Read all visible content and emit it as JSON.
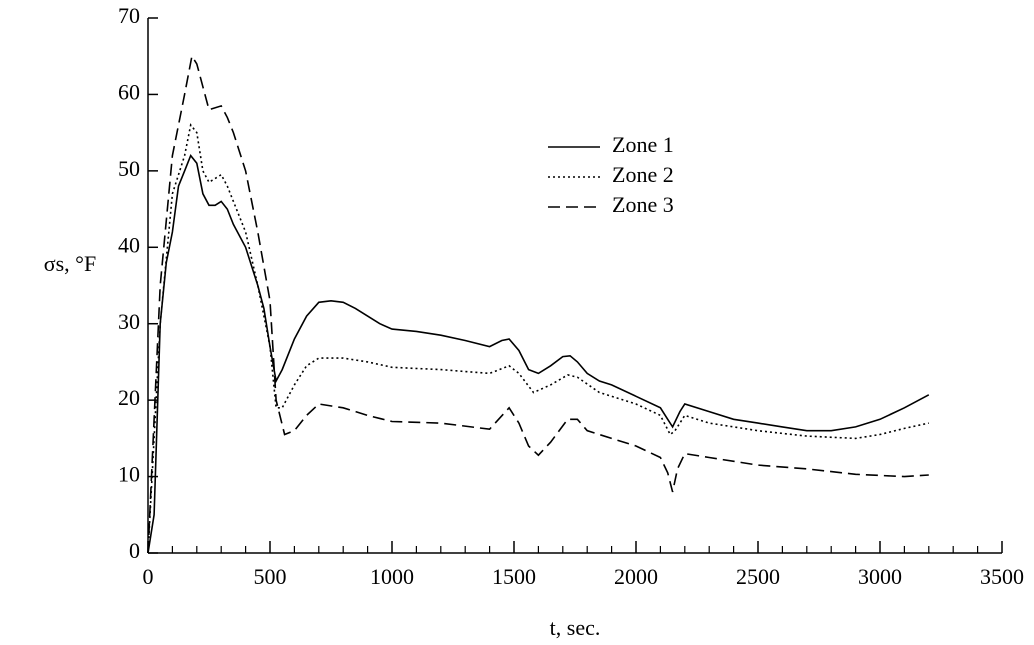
{
  "chart_data": {
    "type": "line",
    "x_label": "t, sec.",
    "y_label": "σs, °F",
    "xlim": [
      0,
      3500
    ],
    "xticks": [
      0,
      500,
      1000,
      1500,
      2000,
      2500,
      3000,
      3500
    ],
    "xminorticks": [
      100,
      200,
      300,
      400,
      600,
      700,
      800,
      900,
      1100,
      1200,
      1300,
      1400,
      1600,
      1700,
      1800,
      1900,
      2100,
      2200,
      2300,
      2400,
      2600,
      2700,
      2800,
      2900,
      3100,
      3200,
      3300,
      3400
    ],
    "ylim": [
      0,
      70
    ],
    "yticks": [
      0,
      10,
      20,
      30,
      40,
      50,
      60,
      70
    ],
    "grid": false,
    "legend": "upper-center",
    "series": [
      {
        "name": "Zone 1",
        "color": "#000000",
        "dash": "solid",
        "x": [
          0,
          25,
          50,
          75,
          100,
          125,
          150,
          175,
          200,
          225,
          250,
          275,
          300,
          325,
          350,
          400,
          450,
          475,
          500,
          525,
          550,
          600,
          650,
          700,
          750,
          800,
          850,
          900,
          950,
          1000,
          1100,
          1200,
          1300,
          1400,
          1450,
          1480,
          1520,
          1560,
          1600,
          1650,
          1700,
          1730,
          1760,
          1800,
          1850,
          1900,
          2000,
          2100,
          2130,
          2150,
          2180,
          2200,
          2300,
          2400,
          2500,
          2600,
          2700,
          2800,
          2900,
          3000,
          3100,
          3200
        ],
        "values": [
          0,
          5,
          30,
          38,
          42,
          48,
          50,
          52,
          51,
          47,
          45.5,
          45.5,
          46,
          45,
          43,
          40,
          35,
          32,
          27,
          22.5,
          24,
          28,
          31,
          32.8,
          33,
          32.8,
          32,
          31,
          30,
          29.3,
          29,
          28.5,
          27.8,
          27,
          27.8,
          28,
          26.5,
          24,
          23.5,
          24.5,
          25.7,
          25.8,
          25,
          23.5,
          22.5,
          22,
          20.5,
          19,
          17.5,
          16.5,
          18.5,
          19.5,
          18.5,
          17.5,
          17,
          16.5,
          16,
          16,
          16.5,
          17.5,
          19,
          20.7
        ]
      },
      {
        "name": "Zone 2",
        "color": "#000000",
        "dash": "dotted",
        "x": [
          0,
          50,
          100,
          150,
          175,
          200,
          225,
          250,
          300,
          325,
          350,
          400,
          450,
          500,
          525,
          550,
          600,
          650,
          700,
          800,
          900,
          1000,
          1200,
          1400,
          1480,
          1520,
          1580,
          1650,
          1720,
          1760,
          1850,
          2000,
          2100,
          2140,
          2160,
          2200,
          2300,
          2500,
          2700,
          2900,
          3000,
          3100,
          3200
        ],
        "values": [
          0,
          30,
          47,
          52,
          56,
          55,
          50,
          48.5,
          49.5,
          48,
          46,
          42,
          35,
          27,
          19,
          19,
          22,
          24.5,
          25.5,
          25.5,
          25,
          24.3,
          24,
          23.5,
          24.5,
          23.5,
          21,
          22,
          23.3,
          23,
          21,
          19.5,
          18,
          15.5,
          16,
          18,
          17,
          16,
          15.3,
          15,
          15.5,
          16.3,
          17
        ]
      },
      {
        "name": "Zone 3",
        "color": "#000000",
        "dash": "dashed",
        "x": [
          0,
          50,
          100,
          150,
          180,
          200,
          225,
          250,
          300,
          325,
          350,
          400,
          450,
          500,
          525,
          560,
          600,
          650,
          700,
          800,
          900,
          1000,
          1200,
          1400,
          1480,
          1520,
          1560,
          1600,
          1650,
          1720,
          1760,
          1800,
          1900,
          2000,
          2100,
          2130,
          2150,
          2170,
          2200,
          2300,
          2500,
          2700,
          2900,
          3100,
          3200
        ],
        "values": [
          0,
          35,
          52,
          60,
          65,
          64,
          61,
          58,
          58.5,
          57,
          55,
          50,
          42,
          33,
          20,
          15.5,
          16,
          18,
          19.5,
          19,
          18,
          17.2,
          17,
          16.2,
          19,
          17,
          14,
          12.8,
          14.5,
          17.5,
          17.5,
          16,
          15,
          14,
          12.5,
          10.5,
          8,
          11,
          13,
          12.5,
          11.5,
          11,
          10.3,
          10,
          10.2
        ]
      }
    ]
  }
}
